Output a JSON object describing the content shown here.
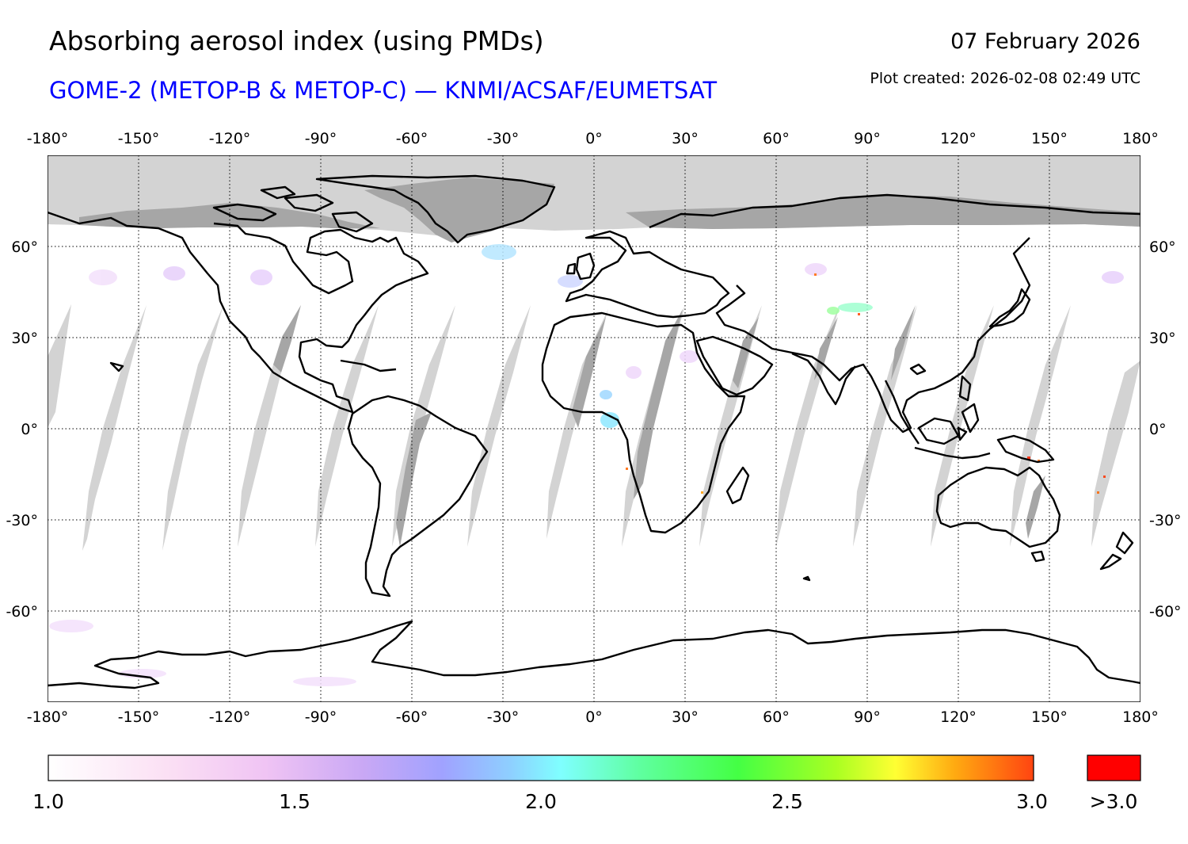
{
  "header": {
    "title": "Absorbing aerosol index (using PMDs)",
    "subtitle": "GOME-2 (METOP-B & METOP-C) — KNMI/ACSAF/EUMETSAT",
    "date": "07 February 2026",
    "created": "Plot created: 2026-02-08 02:49 UTC"
  },
  "map": {
    "projection": "equirectangular",
    "lon_range": [
      -180,
      180
    ],
    "lat_range": [
      -90,
      90
    ],
    "lon_ticks": [
      "-180°",
      "-150°",
      "-120°",
      "-90°",
      "-60°",
      "-30°",
      "0°",
      "30°",
      "60°",
      "90°",
      "120°",
      "150°",
      "180°"
    ],
    "lat_ticks": [
      "60°",
      "30°",
      "0°",
      "-30°",
      "-60°"
    ],
    "grid": "dotted",
    "colors": {
      "polar_no_data": "#d3d3d3",
      "land_no_data_dark": "#a6a6a6",
      "coastline": "#000000",
      "aerosol_high": "#ff0000"
    }
  },
  "colorbar": {
    "ticks": [
      "1.0",
      "1.5",
      "2.0",
      "2.5",
      "3.0"
    ],
    "over_label": ">3.0",
    "range": [
      1.0,
      3.0
    ],
    "over_color": "#ff0000",
    "stops": [
      "#ffffff",
      "#f7c8f0",
      "#c9a8f5",
      "#9fa6ff",
      "#8ed7ff",
      "#7fffff",
      "#5fff9f",
      "#44ff44",
      "#aaff22",
      "#ffff33",
      "#ff9f11",
      "#ff4411"
    ]
  }
}
